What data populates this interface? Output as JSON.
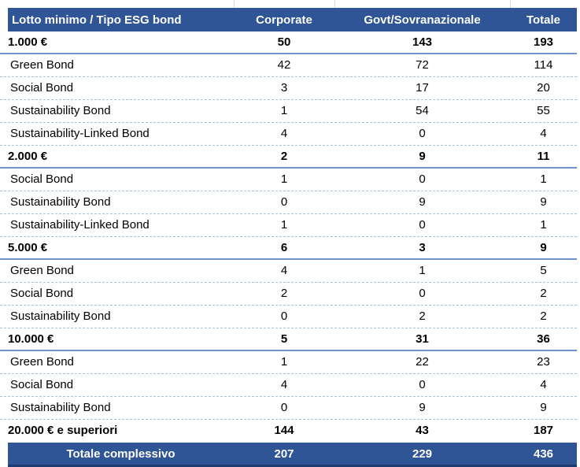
{
  "table": {
    "header": {
      "label": "Lotto minimo / Tipo ESG bond",
      "corporate": "Corporate",
      "govt": "Govt/Sovranazionale",
      "totale": "Totale"
    },
    "rows": [
      {
        "label": "1.000 €",
        "bold": true,
        "corporate": "50",
        "govt": "143",
        "totale": "193"
      },
      {
        "label": "Green Bond",
        "bold": false,
        "corporate": "42",
        "govt": "72",
        "totale": "114"
      },
      {
        "label": "Social Bond",
        "bold": false,
        "corporate": "3",
        "govt": "17",
        "totale": "20"
      },
      {
        "label": "Sustainability Bond",
        "bold": false,
        "corporate": "1",
        "govt": "54",
        "totale": "55"
      },
      {
        "label": "Sustainability-Linked Bond",
        "bold": false,
        "corporate": "4",
        "govt": "0",
        "totale": "4"
      },
      {
        "label": "2.000 €",
        "bold": true,
        "corporate": "2",
        "govt": "9",
        "totale": "11"
      },
      {
        "label": "Social Bond",
        "bold": false,
        "corporate": "1",
        "govt": "0",
        "totale": "1"
      },
      {
        "label": "Sustainability Bond",
        "bold": false,
        "corporate": "0",
        "govt": "9",
        "totale": "9"
      },
      {
        "label": "Sustainability-Linked Bond",
        "bold": false,
        "corporate": "1",
        "govt": "0",
        "totale": "1"
      },
      {
        "label": "5.000 €",
        "bold": true,
        "corporate": "6",
        "govt": "3",
        "totale": "9"
      },
      {
        "label": "Green Bond",
        "bold": false,
        "corporate": "4",
        "govt": "1",
        "totale": "5"
      },
      {
        "label": "Social Bond",
        "bold": false,
        "corporate": "2",
        "govt": "0",
        "totale": "2"
      },
      {
        "label": "Sustainability Bond",
        "bold": false,
        "corporate": "0",
        "govt": "2",
        "totale": "2"
      },
      {
        "label": "10.000 €",
        "bold": true,
        "corporate": "5",
        "govt": "31",
        "totale": "36"
      },
      {
        "label": "Green Bond",
        "bold": false,
        "corporate": "1",
        "govt": "22",
        "totale": "23"
      },
      {
        "label": "Social Bond",
        "bold": false,
        "corporate": "4",
        "govt": "0",
        "totale": "4"
      },
      {
        "label": "Sustainability Bond",
        "bold": false,
        "corporate": "0",
        "govt": "9",
        "totale": "9"
      },
      {
        "label": "20.000 € e superiori",
        "bold": true,
        "corporate": "144",
        "govt": "43",
        "totale": "187"
      }
    ],
    "footer": {
      "label": "Totale complessivo",
      "corporate": "207",
      "govt": "229",
      "totale": "436"
    }
  },
  "colors": {
    "header_bg": "#2F5596",
    "footer_bg": "#2F5596",
    "header_text": "#FFFFFF",
    "body_text": "#000000",
    "group_row_border": "#6E92CB",
    "detail_row_border": "#A9C0DF",
    "footer_bottom_border": "#1E3C74",
    "gridline": "#D9D9D9"
  }
}
